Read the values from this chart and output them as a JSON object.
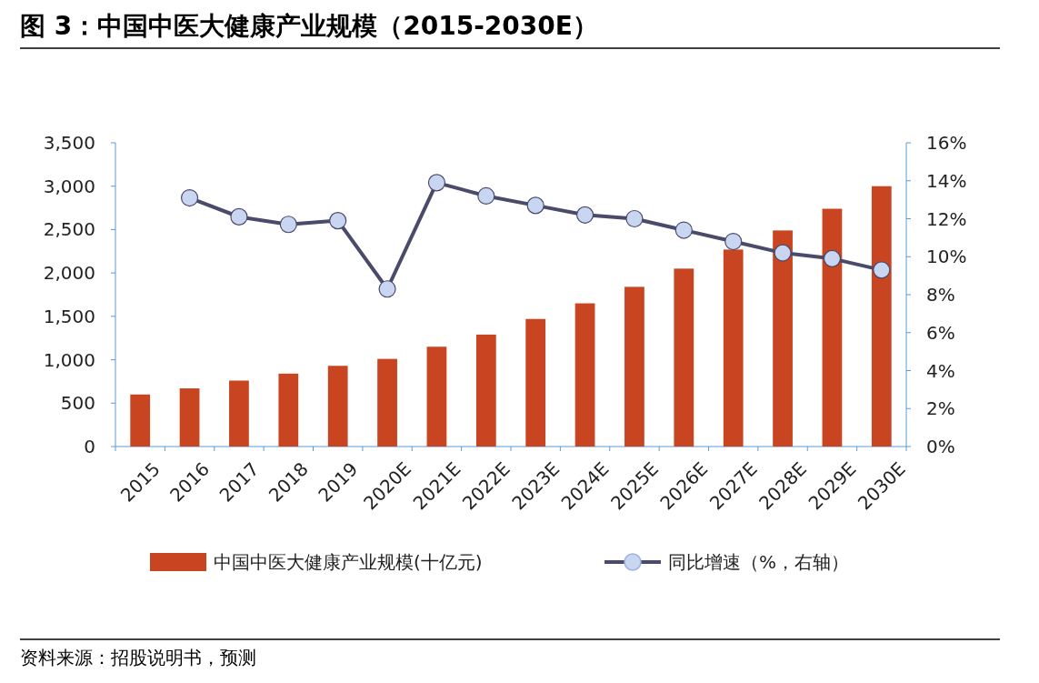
{
  "chart_data": {
    "type": "bar",
    "title": "图 3：中国中医大健康产业规模（2015-2030E）",
    "categories": [
      "2015",
      "2016",
      "2017",
      "2018",
      "2019",
      "2020E",
      "2021E",
      "2022E",
      "2023E",
      "2024E",
      "2025E",
      "2026E",
      "2027E",
      "2028E",
      "2029E",
      "2030E"
    ],
    "series": [
      {
        "name": "中国中医大健康产业规模(十亿元)",
        "color": "#c94420",
        "values": [
          600,
          670,
          760,
          840,
          930,
          1010,
          1150,
          1290,
          1470,
          1650,
          1840,
          2050,
          2270,
          2490,
          2740,
          3000
        ]
      },
      {
        "name": "同比增速（%，右轴）",
        "type": "line",
        "axis": "y2",
        "color": "#4a4a6a",
        "values": [
          null,
          13.1,
          12.1,
          11.7,
          11.9,
          8.3,
          13.9,
          13.2,
          12.7,
          12.2,
          12.0,
          11.4,
          10.8,
          10.2,
          9.9,
          9.3
        ]
      }
    ],
    "ylim": [
      0,
      3500
    ],
    "yticks": [
      0,
      500,
      {
        "value": 1000,
        "label": "1,000"
      },
      {
        "value": 1500,
        "label": "1,500"
      },
      {
        "value": 2000,
        "label": "2,000"
      },
      {
        "value": 2500,
        "label": "2,500"
      },
      {
        "value": 3000,
        "label": "3,000"
      },
      {
        "value": 3500,
        "label": "3,500"
      }
    ],
    "y2lim": [
      0,
      16
    ],
    "y2ticks": [
      {
        "value": 0,
        "label": "0%"
      },
      {
        "value": 2,
        "label": "2%"
      },
      {
        "value": 4,
        "label": "4%"
      },
      {
        "value": 6,
        "label": "6%"
      },
      {
        "value": 8,
        "label": "8%"
      },
      {
        "value": 10,
        "label": "10%"
      },
      {
        "value": 12,
        "label": "12%"
      },
      {
        "value": 14,
        "label": "14%"
      },
      {
        "value": 16,
        "label": "16%"
      }
    ],
    "marker": "circle",
    "legend": "bottom",
    "annotations": [
      "资料来源：招股说明书，预测"
    ]
  }
}
